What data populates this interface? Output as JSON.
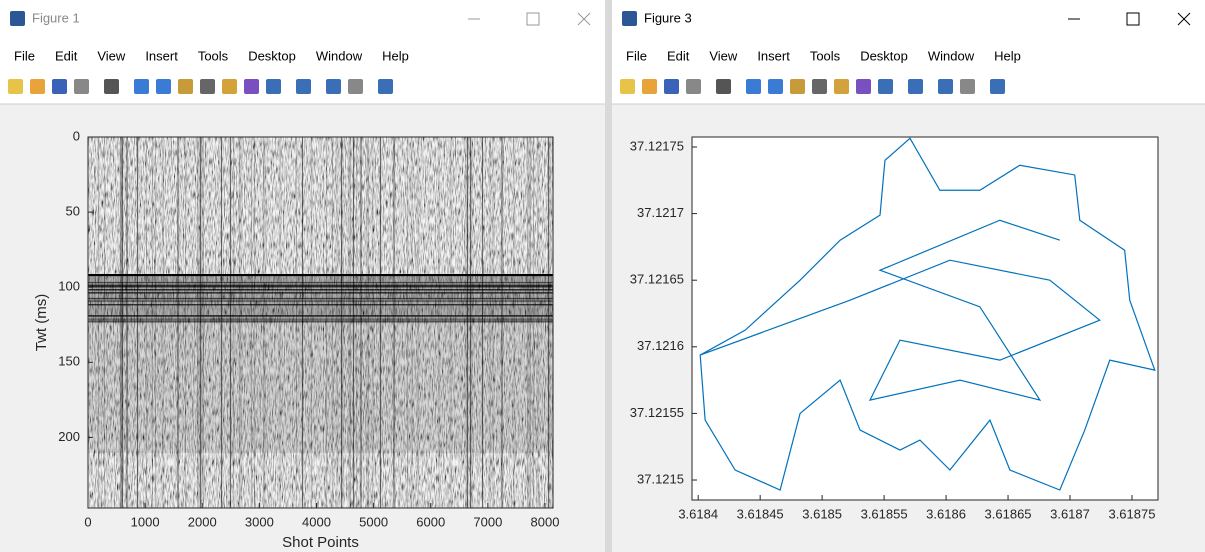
{
  "windows": [
    {
      "title": "Figure 1",
      "menu": [
        "File",
        "Edit",
        "View",
        "Insert",
        "Tools",
        "Desktop",
        "Window",
        "Help"
      ]
    },
    {
      "title": "Figure 3",
      "menu": [
        "File",
        "Edit",
        "View",
        "Insert",
        "Tools",
        "Desktop",
        "Window",
        "Help"
      ]
    }
  ],
  "chart_data": [
    {
      "type": "image",
      "xlabel": "Shot Points",
      "ylabel": "Twt (ms)",
      "xlim": [
        0,
        8140
      ],
      "xticks": [
        0,
        1000,
        2000,
        3000,
        4000,
        5000,
        6000,
        7000,
        8000
      ],
      "ylim": [
        0,
        247
      ],
      "yticks": [
        0,
        50,
        100,
        150,
        200
      ],
      "y_reversed": true,
      "colormap": "gray"
    },
    {
      "type": "line",
      "color": "#0072bd",
      "xlim": [
        3.618395,
        3.618771
      ],
      "xticks": [
        3.6184,
        3.61845,
        3.6185,
        3.61855,
        3.6186,
        3.61865,
        3.6187,
        3.61875
      ],
      "ylim": [
        37.121485,
        37.1217575
      ],
      "yticks": [
        37.1215,
        37.12155,
        37.1216,
        37.12165,
        37.1217,
        37.12175
      ],
      "x": [
        3.6184016,
        3.6184379,
        3.6184822,
        3.6185145,
        3.6185467,
        3.6185507,
        3.6185709,
        3.618595,
        3.6186273,
        3.6186595,
        3.6187038,
        3.6187079,
        3.6187441,
        3.6187482,
        3.6187684,
        3.6187321,
        3.6187119,
        3.6186918,
        3.6186515,
        3.6186354,
        3.6186031,
        3.6185789,
        3.6185628,
        3.6185306,
        3.6185145,
        3.6184822,
        3.6184661,
        3.6184298,
        3.6184056,
        3.6184016,
        3.6185225,
        3.6186031,
        3.6186837,
        3.618724,
        3.6186434,
        3.6185628,
        3.6185386,
        3.6186112,
        3.6186757,
        3.6186273,
        3.6185467,
        3.6186434,
        3.6186918
      ],
      "values": [
        37.1215938,
        37.1216125,
        37.12165,
        37.12168,
        37.1216988,
        37.12174,
        37.1217565,
        37.1217175,
        37.1217175,
        37.1217363,
        37.121729,
        37.121695,
        37.1216725,
        37.121635,
        37.1215825,
        37.12159,
        37.1215375,
        37.1214925,
        37.1215075,
        37.121545,
        37.1215075,
        37.12153,
        37.1215225,
        37.1215375,
        37.121575,
        37.12155,
        37.1214925,
        37.1215075,
        37.121545,
        37.1215938,
        37.121635,
        37.121665,
        37.12165,
        37.12162,
        37.12159,
        37.121605,
        37.12156,
        37.121575,
        37.12156,
        37.12163,
        37.1216575,
        37.121695,
        37.12168
      ]
    }
  ]
}
